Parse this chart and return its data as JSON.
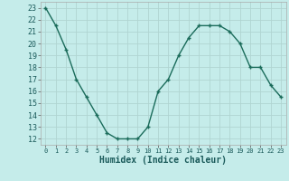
{
  "x": [
    0,
    1,
    2,
    3,
    4,
    5,
    6,
    7,
    8,
    9,
    10,
    11,
    12,
    13,
    14,
    15,
    16,
    17,
    18,
    19,
    20,
    21,
    22,
    23
  ],
  "y": [
    23,
    21.5,
    19.5,
    17,
    15.5,
    14,
    12.5,
    12,
    12,
    12,
    13,
    16,
    17,
    19,
    20.5,
    21.5,
    21.5,
    21.5,
    21,
    20,
    18,
    18,
    16.5,
    15.5
  ],
  "line_color": "#1a6b5a",
  "marker": "+",
  "marker_size": 3.5,
  "line_width": 1.0,
  "bg_color": "#c5ecea",
  "grid_color": "#b0d5d2",
  "xlabel": "Humidex (Indice chaleur)",
  "xlabel_fontsize": 7,
  "tick_fontsize": 6,
  "xlim": [
    -0.5,
    23.5
  ],
  "ylim": [
    11.5,
    23.5
  ],
  "yticks": [
    12,
    13,
    14,
    15,
    16,
    17,
    18,
    19,
    20,
    21,
    22,
    23
  ],
  "xticks": [
    0,
    1,
    2,
    3,
    4,
    5,
    6,
    7,
    8,
    9,
    10,
    11,
    12,
    13,
    14,
    15,
    16,
    17,
    18,
    19,
    20,
    21,
    22,
    23
  ]
}
